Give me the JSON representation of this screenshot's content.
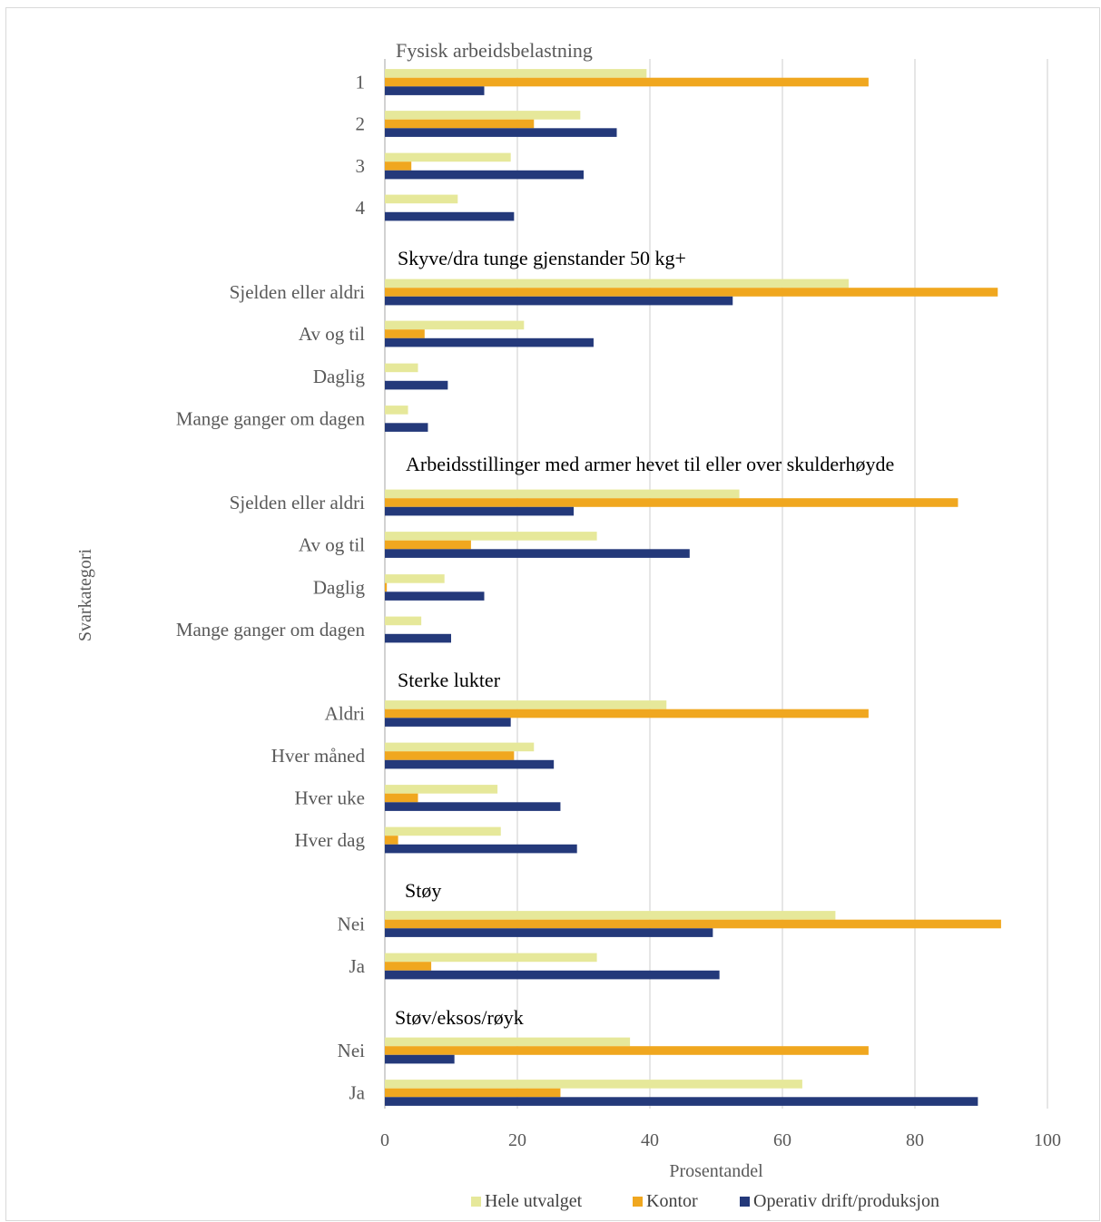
{
  "chart_data": {
    "type": "bar",
    "orientation": "horizontal",
    "xlabel": "Prosentandel",
    "ylabel": "Svarkategori",
    "xlim": [
      0,
      100
    ],
    "xticks": [
      "0",
      "20",
      "40",
      "60",
      "80",
      "100"
    ],
    "grid": "vertical",
    "legend_position": "bottom",
    "series": [
      {
        "name": "Hele utvalget",
        "color": "#e6e89a"
      },
      {
        "name": "Kontor",
        "color": "#f0a71f"
      },
      {
        "name": "Operativ drift/produksjon",
        "color": "#24397a"
      }
    ],
    "groups": [
      {
        "title": "Fysisk arbeidsbelastning",
        "categories": [
          {
            "label": "1",
            "values": [
              39.5,
              73.0,
              15.0
            ]
          },
          {
            "label": "2",
            "values": [
              29.5,
              22.5,
              35.0
            ]
          },
          {
            "label": "3",
            "values": [
              19.0,
              4.0,
              30.0
            ]
          },
          {
            "label": "4",
            "values": [
              11.0,
              0,
              19.5
            ]
          }
        ]
      },
      {
        "title": "Skyve/dra tunge gjenstander 50 kg+",
        "categories": [
          {
            "label": "Sjelden eller aldri",
            "values": [
              70.0,
              92.5,
              52.5
            ]
          },
          {
            "label": "Av og til",
            "values": [
              21.0,
              6.0,
              31.5
            ]
          },
          {
            "label": "Daglig",
            "values": [
              5.0,
              0,
              9.5
            ]
          },
          {
            "label": "Mange ganger om dagen",
            "values": [
              3.5,
              0,
              6.5
            ]
          }
        ]
      },
      {
        "title": "Arbeidsstillinger med armer hevet til eller over skulderhøyde",
        "categories": [
          {
            "label": "Sjelden eller aldri",
            "values": [
              53.5,
              86.5,
              28.5
            ]
          },
          {
            "label": "Av og til",
            "values": [
              32.0,
              13.0,
              46.0
            ]
          },
          {
            "label": "Daglig",
            "values": [
              9.0,
              0.3,
              15.0
            ]
          },
          {
            "label": "Mange ganger om dagen",
            "values": [
              5.5,
              0,
              10.0
            ]
          }
        ]
      },
      {
        "title": "Sterke lukter",
        "categories": [
          {
            "label": "Aldri",
            "values": [
              42.5,
              73.0,
              19.0
            ]
          },
          {
            "label": "Hver måned",
            "values": [
              22.5,
              19.5,
              25.5
            ]
          },
          {
            "label": "Hver uke",
            "values": [
              17.0,
              5.0,
              26.5
            ]
          },
          {
            "label": "Hver dag",
            "values": [
              17.5,
              2.0,
              29.0
            ]
          }
        ]
      },
      {
        "title": "Støy",
        "categories": [
          {
            "label": "Nei",
            "values": [
              68.0,
              93.0,
              49.5
            ]
          },
          {
            "label": "Ja",
            "values": [
              32.0,
              7.0,
              50.5
            ]
          }
        ]
      },
      {
        "title": "Støv/eksos/røyk",
        "categories": [
          {
            "label": "Nei",
            "values": [
              37.0,
              73.0,
              10.5
            ]
          },
          {
            "label": "Ja",
            "values": [
              63.0,
              26.5,
              89.5
            ]
          }
        ]
      }
    ]
  }
}
